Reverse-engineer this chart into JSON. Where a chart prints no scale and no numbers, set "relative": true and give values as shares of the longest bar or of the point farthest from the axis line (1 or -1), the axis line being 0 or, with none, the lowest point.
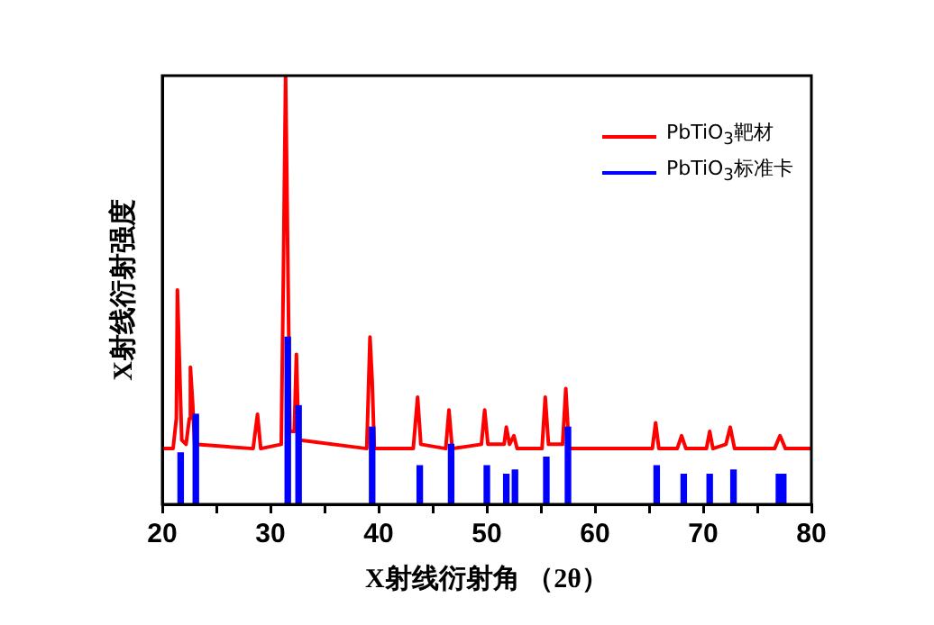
{
  "chart_data": {
    "type": "line",
    "xlabel": "X射线衍射角 （2θ）",
    "ylabel": "X射线衍射强度",
    "relative": true,
    "legend": "top right",
    "xlim": [
      20,
      80
    ],
    "xticks": [
      20,
      {
        "value": 25,
        "label": null
      },
      30,
      {
        "value": 35,
        "label": null
      },
      40,
      {
        "value": 45,
        "label": null
      },
      50,
      {
        "value": 55,
        "label": null
      },
      60,
      {
        "value": 65,
        "label": null
      },
      70,
      {
        "value": 75,
        "label": null
      },
      80
    ],
    "grid": false,
    "series": [
      {
        "name": "PbTiO$_{3}$靶材",
        "color": "#ff0000",
        "x": [
          20,
          21.0,
          21.3,
          21.4,
          21.6,
          21.8,
          22.2,
          22.5,
          22.6,
          22.8,
          23.0,
          28.4,
          28.8,
          29.1,
          31.0,
          31.2,
          31.4,
          31.6,
          31.8,
          32.2,
          32.4,
          32.6,
          38.9,
          39.2,
          39.4,
          39.6,
          43.2,
          43.6,
          43.9,
          46.2,
          46.5,
          46.8,
          49.5,
          49.8,
          50.1,
          51.6,
          51.8,
          52.1,
          52.5,
          52.8,
          55.1,
          55.4,
          55.7,
          57.0,
          57.3,
          57.6,
          65.3,
          65.6,
          65.9,
          67.6,
          68.0,
          68.4,
          70.3,
          70.6,
          70.9,
          72.1,
          72.5,
          72.9,
          76.6,
          77.1,
          77.6,
          80
        ],
        "values": [
          0.13,
          0.13,
          0.2,
          0.5,
          0.32,
          0.15,
          0.14,
          0.2,
          0.32,
          0.24,
          0.14,
          0.13,
          0.21,
          0.13,
          0.14,
          0.55,
          1.0,
          0.58,
          0.17,
          0.17,
          0.35,
          0.15,
          0.13,
          0.39,
          0.29,
          0.13,
          0.13,
          0.25,
          0.14,
          0.13,
          0.22,
          0.13,
          0.14,
          0.22,
          0.14,
          0.14,
          0.18,
          0.14,
          0.16,
          0.13,
          0.13,
          0.25,
          0.14,
          0.14,
          0.27,
          0.13,
          0.13,
          0.19,
          0.13,
          0.13,
          0.16,
          0.13,
          0.13,
          0.17,
          0.13,
          0.14,
          0.18,
          0.13,
          0.13,
          0.16,
          0.13,
          0.13
        ]
      },
      {
        "name": "PbTiO$_{3}$标准卡",
        "type": "bar",
        "color": "#0000ff",
        "x": [
          21.7,
          23.1,
          31.6,
          32.6,
          39.4,
          43.8,
          46.7,
          50.0,
          51.8,
          52.6,
          55.5,
          57.5,
          65.7,
          68.2,
          70.6,
          72.8,
          77.0,
          77.4
        ],
        "values": [
          0.12,
          0.21,
          0.39,
          0.23,
          0.18,
          0.09,
          0.14,
          0.09,
          0.07,
          0.08,
          0.11,
          0.18,
          0.09,
          0.07,
          0.07,
          0.08,
          0.07,
          0.07
        ]
      }
    ]
  }
}
